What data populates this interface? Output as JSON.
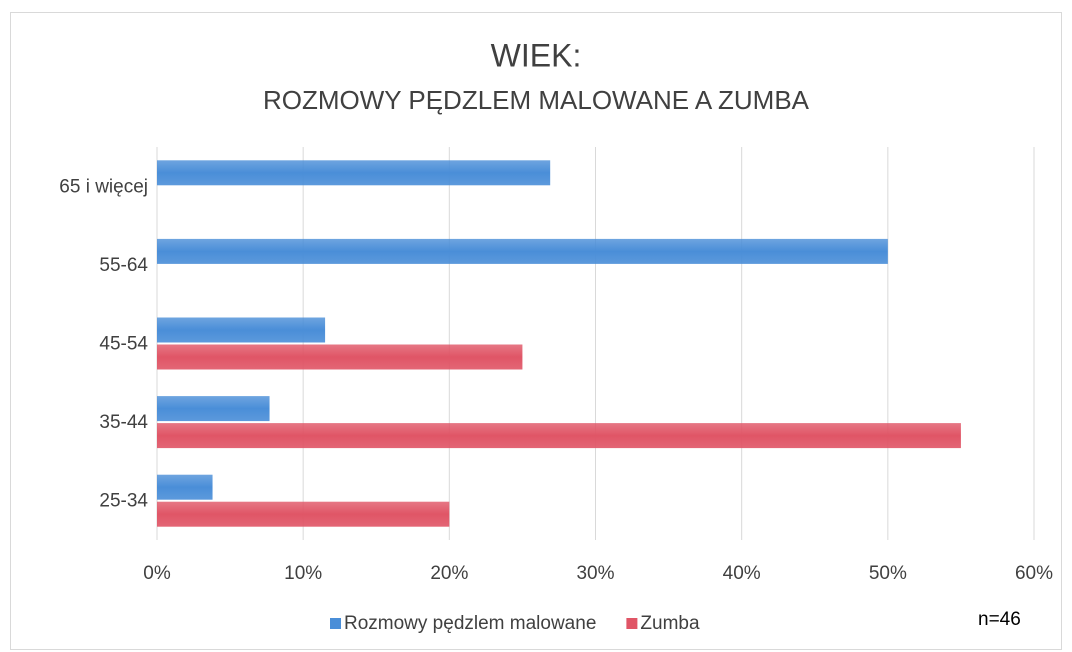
{
  "chart_data": {
    "type": "bar",
    "orientation": "horizontal",
    "title": "WIEK:",
    "subtitle": "ROZMOWY PĘDZLEM MALOWANE A ZUMBA",
    "categories": [
      "65 i więcej",
      "55-64",
      "45-54",
      "35-44",
      "25-34"
    ],
    "series": [
      {
        "name": "Rozmowy pędzlem malowane",
        "color": "#4a8ed8",
        "values": [
          26.9,
          50,
          11.5,
          7.7,
          3.8
        ]
      },
      {
        "name": "Zumba",
        "color": "#e05566",
        "values": [
          null,
          null,
          25,
          55,
          20
        ]
      }
    ],
    "xlim": [
      0,
      60
    ],
    "xticks": [
      {
        "value": 0,
        "label": "0%"
      },
      {
        "value": 10,
        "label": "10%"
      },
      {
        "value": 20,
        "label": "20%"
      },
      {
        "value": 30,
        "label": "30%"
      },
      {
        "value": 40,
        "label": "40%"
      },
      {
        "value": 50,
        "label": "50%"
      },
      {
        "value": 60,
        "label": "60%"
      }
    ],
    "grid": true,
    "legend": "bottom",
    "annotation": "n=46"
  }
}
